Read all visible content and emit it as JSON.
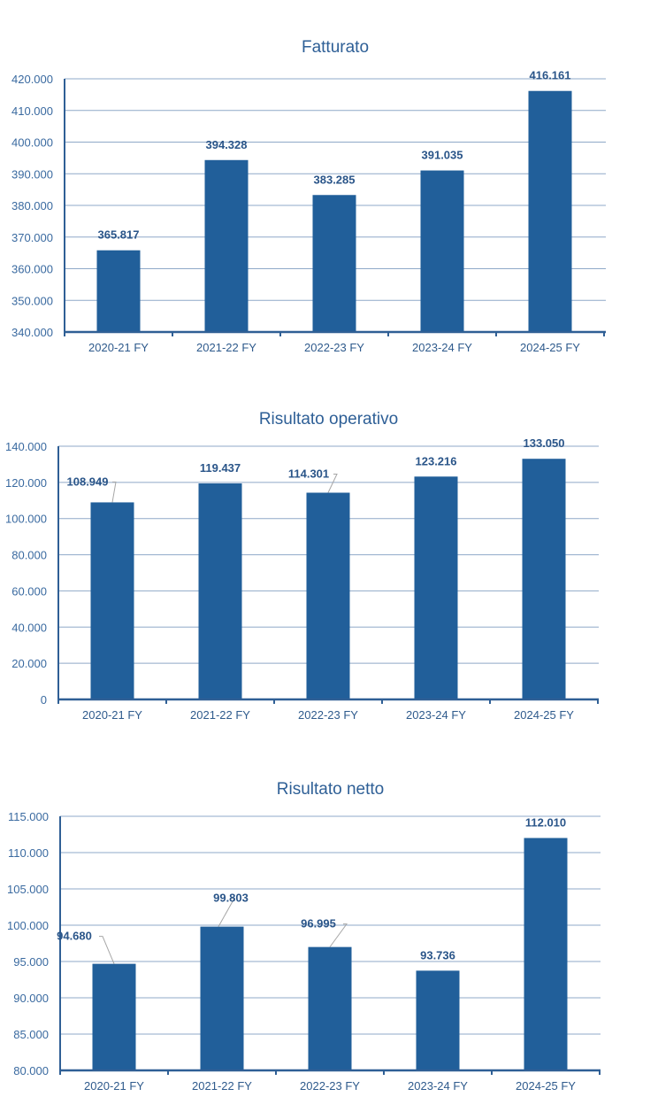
{
  "chart_data": [
    {
      "type": "bar",
      "title": "Fatturato",
      "categories": [
        "2020-21 FY",
        "2021-22 FY",
        "2022-23 FY",
        "2023-24 FY",
        "2024-25 FY"
      ],
      "values": [
        365817,
        394328,
        383285,
        391035,
        416161
      ],
      "value_labels": [
        "365.817",
        "394.328",
        "383.285",
        "391.035",
        "416.161"
      ],
      "yticks": [
        "340.000",
        "350.000",
        "360.000",
        "370.000",
        "380.000",
        "390.000",
        "400.000",
        "410.000",
        "420.000"
      ],
      "ylim": [
        340000,
        420000
      ],
      "xlabel": "",
      "ylabel": "",
      "grid": true,
      "color": "#215f9a"
    },
    {
      "type": "bar",
      "title": "Risultato operativo",
      "categories": [
        "2020-21 FY",
        "2021-22 FY",
        "2022-23 FY",
        "2023-24 FY",
        "2024-25 FY"
      ],
      "values": [
        108949,
        119437,
        114301,
        123216,
        133050
      ],
      "value_labels": [
        "108.949",
        "119.437",
        "114.301",
        "123.216",
        "133.050"
      ],
      "yticks": [
        "0",
        "20.000",
        "40.000",
        "60.000",
        "80.000",
        "100.000",
        "120.000",
        "140.000"
      ],
      "ylim": [
        0,
        140000
      ],
      "xlabel": "",
      "ylabel": "",
      "grid": true,
      "color": "#215f9a"
    },
    {
      "type": "bar",
      "title": "Risultato netto",
      "categories": [
        "2020-21 FY",
        "2021-22 FY",
        "2022-23 FY",
        "2023-24 FY",
        "2024-25 FY"
      ],
      "values": [
        94680,
        99803,
        96995,
        93736,
        112010
      ],
      "value_labels": [
        "94.680",
        "99.803",
        "96.995",
        "93.736",
        "112.010"
      ],
      "yticks": [
        "80.000",
        "85.000",
        "90.000",
        "95.000",
        "100.000",
        "105.000",
        "110.000",
        "115.000"
      ],
      "ylim": [
        80000,
        115000
      ],
      "xlabel": "",
      "ylabel": "",
      "grid": true,
      "color": "#215f9a"
    }
  ]
}
